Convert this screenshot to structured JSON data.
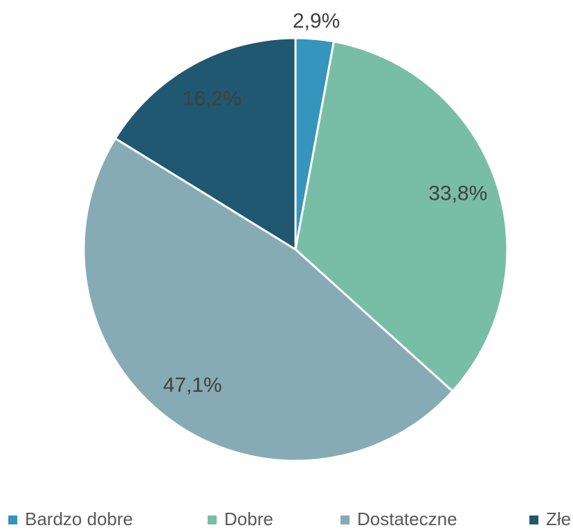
{
  "chart_data": {
    "type": "pie",
    "categories": [
      "Bardzo dobre",
      "Dobre",
      "Dostateczne",
      "Złe"
    ],
    "values": [
      2.9,
      33.8,
      47.1,
      16.2
    ],
    "value_labels": [
      "2,9%",
      "33,8%",
      "47,1%",
      "16,2%"
    ],
    "colors": [
      "#3595bd",
      "#78bea6",
      "#87abb5",
      "#1f5870"
    ],
    "legend": "bottom"
  }
}
